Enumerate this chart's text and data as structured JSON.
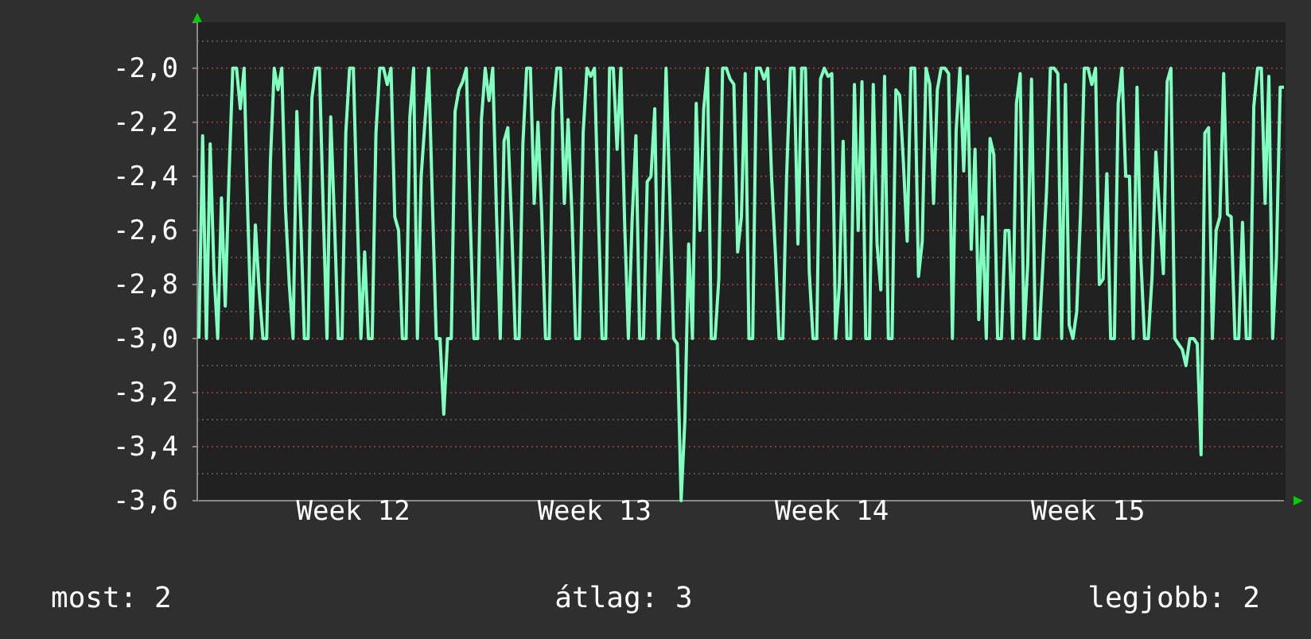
{
  "chart_data": {
    "type": "line",
    "categories": [
      null,
      null,
      null,
      null,
      null,
      null,
      null,
      null,
      null,
      null,
      null,
      null,
      null,
      null,
      null,
      null,
      null,
      null,
      null,
      null,
      null,
      null,
      null,
      null,
      null,
      null,
      null,
      null,
      null,
      null,
      null,
      null,
      null,
      null,
      null,
      null,
      null,
      null,
      null,
      null,
      null,
      "Week 12",
      null,
      null,
      null,
      null,
      null,
      null,
      null,
      null,
      null,
      null,
      null,
      null,
      null,
      null,
      null,
      null,
      null,
      null,
      null,
      null,
      null,
      null,
      null,
      null,
      null,
      null,
      null,
      null,
      null,
      null,
      null,
      null,
      null,
      null,
      null,
      null,
      null,
      null,
      null,
      null,
      null,
      null,
      null,
      null,
      null,
      null,
      null,
      null,
      null,
      null,
      null,
      null,
      null,
      null,
      null,
      null,
      null,
      null,
      null,
      null,
      null,
      null,
      null,
      "Week 13",
      null,
      null,
      null,
      null,
      null,
      null,
      null,
      null,
      null,
      null,
      null,
      null,
      null,
      null,
      null,
      null,
      null,
      null,
      null,
      null,
      null,
      null,
      null,
      null,
      null,
      null,
      null,
      null,
      null,
      null,
      null,
      null,
      null,
      null,
      null,
      null,
      null,
      null,
      null,
      null,
      null,
      null,
      null,
      null,
      null,
      null,
      null,
      null,
      null,
      null,
      null,
      null,
      null,
      null,
      null,
      null,
      null,
      null,
      null,
      null,
      null,
      null,
      "Week 14",
      null,
      null,
      null,
      null,
      null,
      null,
      null,
      null,
      null,
      null,
      null,
      null,
      null,
      null,
      null,
      null,
      null,
      null,
      null,
      null,
      null,
      null,
      null,
      null,
      null,
      null,
      null,
      null,
      null,
      null,
      null,
      null,
      null,
      null,
      null,
      null,
      null,
      null,
      null,
      null,
      null,
      null,
      null,
      null,
      null,
      null,
      null,
      null,
      null,
      null,
      null,
      null,
      null,
      null,
      null,
      null,
      null,
      null,
      null,
      null,
      null,
      null,
      null,
      null,
      null,
      null,
      null,
      "Week 15",
      null,
      null,
      null,
      null,
      null,
      null,
      null,
      null,
      null,
      null,
      null,
      null,
      null,
      null,
      null,
      null,
      null,
      null,
      null,
      null,
      null,
      null,
      null,
      null,
      null,
      null,
      null,
      null,
      null,
      null,
      null,
      null,
      null,
      null,
      null,
      null,
      null,
      null,
      null,
      null,
      null,
      null,
      null,
      null,
      null,
      null,
      null,
      null,
      null,
      null,
      null,
      null
    ],
    "series": [
      {
        "color": "#80ffc0",
        "values": [
          -3.0,
          -2.25,
          -3.0,
          -2.28,
          -2.75,
          -3.0,
          -2.48,
          -2.88,
          -2.4,
          -2.0,
          -2.0,
          -2.15,
          -2.0,
          -2.55,
          -3.0,
          -2.58,
          -2.82,
          -3.0,
          -3.0,
          -2.34,
          -2.0,
          -2.08,
          -2.0,
          -2.52,
          -2.8,
          -3.0,
          -2.16,
          -2.55,
          -3.0,
          -3.0,
          -2.11,
          -2.0,
          -2.0,
          -2.52,
          -3.0,
          -2.18,
          -2.57,
          -3.0,
          -3.0,
          -2.24,
          -2.0,
          -2.0,
          -2.52,
          -3.0,
          -2.68,
          -3.0,
          -3.0,
          -2.24,
          -2.0,
          -2.0,
          -2.06,
          -2.0,
          -2.55,
          -2.6,
          -3.0,
          -3.0,
          -2.18,
          -2.0,
          -3.0,
          -2.4,
          -2.2,
          -2.0,
          -2.5,
          -3.0,
          -3.0,
          -3.28,
          -3.0,
          -3.0,
          -2.16,
          -2.08,
          -2.05,
          -2.0,
          -2.55,
          -3.0,
          -3.0,
          -2.19,
          -2.0,
          -2.12,
          -2.0,
          -2.54,
          -3.0,
          -2.27,
          -2.22,
          -2.58,
          -3.0,
          -3.0,
          -2.28,
          -2.0,
          -2.0,
          -2.5,
          -2.2,
          -2.54,
          -3.0,
          -3.0,
          -2.16,
          -2.0,
          -2.0,
          -2.5,
          -2.19,
          -2.53,
          -3.0,
          -3.0,
          -2.24,
          -2.0,
          -2.03,
          -2.0,
          -2.52,
          -3.0,
          -3.0,
          -2.0,
          -2.0,
          -2.3,
          -2.0,
          -2.57,
          -3.0,
          -2.56,
          -2.25,
          -3.0,
          -3.0,
          -2.42,
          -2.4,
          -2.15,
          -3.0,
          -2.6,
          -2.0,
          -2.48,
          -3.0,
          -3.02,
          -3.6,
          -3.3,
          -2.65,
          -3.0,
          -2.13,
          -2.6,
          -2.15,
          -2.0,
          -3.0,
          -3.0,
          -2.78,
          -2.0,
          -2.0,
          -2.04,
          -2.06,
          -2.68,
          -2.55,
          -2.02,
          -3.0,
          -3.0,
          -2.0,
          -2.0,
          -2.04,
          -2.0,
          -2.4,
          -2.68,
          -3.0,
          -3.0,
          -2.4,
          -2.0,
          -2.0,
          -2.65,
          -2.0,
          -2.0,
          -2.75,
          -3.0,
          -3.0,
          -2.04,
          -2.0,
          -2.03,
          -2.02,
          -3.0,
          -2.8,
          -2.27,
          -3.0,
          -3.0,
          -2.06,
          -2.6,
          -2.05,
          -3.0,
          -3.0,
          -2.06,
          -2.65,
          -2.82,
          -2.03,
          -3.0,
          -3.0,
          -2.08,
          -2.1,
          -2.35,
          -2.64,
          -2.0,
          -2.0,
          -2.77,
          -2.64,
          -2.0,
          -2.06,
          -2.5,
          -2.08,
          -2.0,
          -2.0,
          -2.02,
          -3.0,
          -2.23,
          -2.0,
          -2.38,
          -2.03,
          -2.67,
          -2.3,
          -2.93,
          -2.55,
          -3.0,
          -2.26,
          -2.32,
          -3.0,
          -3.0,
          -2.6,
          -2.6,
          -3.0,
          -2.13,
          -2.02,
          -3.0,
          -2.72,
          -2.04,
          -3.0,
          -3.0,
          -2.73,
          -2.45,
          -2.0,
          -2.0,
          -2.02,
          -3.0,
          -2.06,
          -2.95,
          -3.0,
          -2.9,
          -2.54,
          -2.0,
          -2.0,
          -2.06,
          -2.0,
          -2.8,
          -2.78,
          -2.39,
          -3.0,
          -3.0,
          -2.13,
          -2.0,
          -2.4,
          -2.4,
          -3.0,
          -2.07,
          -2.7,
          -3.0,
          -3.0,
          -2.77,
          -2.31,
          -2.54,
          -2.76,
          -2.05,
          -2.0,
          -3.0,
          -3.02,
          -3.04,
          -3.1,
          -3.0,
          -3.0,
          -3.02,
          -3.43,
          -2.24,
          -2.22,
          -3.0,
          -2.6,
          -2.55,
          -2.02,
          -2.54,
          -2.55,
          -3.0,
          -3.0,
          -2.57,
          -3.0,
          -3.0,
          -2.14,
          -2.0,
          -2.0,
          -2.5,
          -2.03,
          -3.0,
          -2.7,
          -2.07,
          -2.07
        ]
      }
    ],
    "ylim": [
      -3.6,
      -1.83
    ],
    "yticks": [
      {
        "value": -3.6,
        "label": "-3,6"
      },
      {
        "value": -3.4,
        "label": "-3,4"
      },
      {
        "value": -3.2,
        "label": "-3,2"
      },
      {
        "value": -3.0,
        "label": "-3,0"
      },
      {
        "value": -2.8,
        "label": "-2,8"
      },
      {
        "value": -2.6,
        "label": "-2,6"
      },
      {
        "value": -2.4,
        "label": "-2,4"
      },
      {
        "value": -2.2,
        "label": "-2,2"
      },
      {
        "value": -2.0,
        "label": "-2,0"
      }
    ],
    "grid": "y",
    "annotations": [
      "most: 2",
      "átlag: 3",
      "legjobb: 2"
    ]
  }
}
